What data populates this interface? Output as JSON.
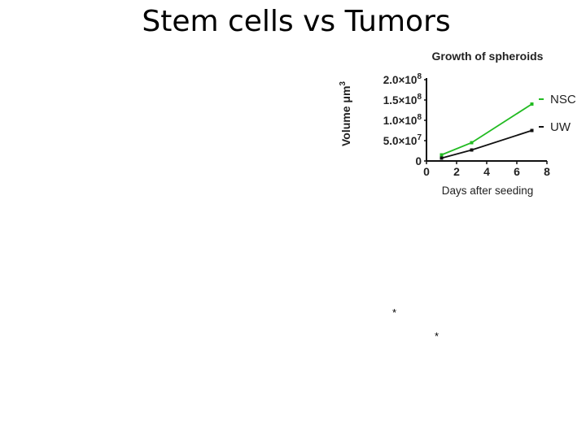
{
  "slide": {
    "title": "Stem cells vs Tumors",
    "markers": [
      "*",
      "*"
    ]
  },
  "chart_data": {
    "type": "line",
    "title": "Growth of spheroids",
    "xlabel": "Days after seeding",
    "ylabel": "Volume μm",
    "ylabel_sup": "3",
    "xlim": [
      0,
      8
    ],
    "ylim": [
      0,
      200000000
    ],
    "x_ticks": [
      "0",
      "2",
      "4",
      "6",
      "8"
    ],
    "y_ticks": [
      {
        "value": 0,
        "mantissa": "0",
        "exp": ""
      },
      {
        "value": 50000000,
        "mantissa": "5.0×10",
        "exp": "7"
      },
      {
        "value": 100000000,
        "mantissa": "1.0×10",
        "exp": "8"
      },
      {
        "value": 150000000,
        "mantissa": "1.5×10",
        "exp": "8"
      },
      {
        "value": 200000000,
        "mantissa": "2.0×10",
        "exp": "8"
      }
    ],
    "legend": "right",
    "series": [
      {
        "name": "NSC",
        "color": "#22bb22",
        "x": [
          1,
          3,
          7
        ],
        "y": [
          15000000,
          45000000,
          140000000
        ]
      },
      {
        "name": "UW",
        "color": "#111111",
        "x": [
          1,
          3,
          7
        ],
        "y": [
          7000000,
          27000000,
          75000000
        ]
      }
    ]
  }
}
